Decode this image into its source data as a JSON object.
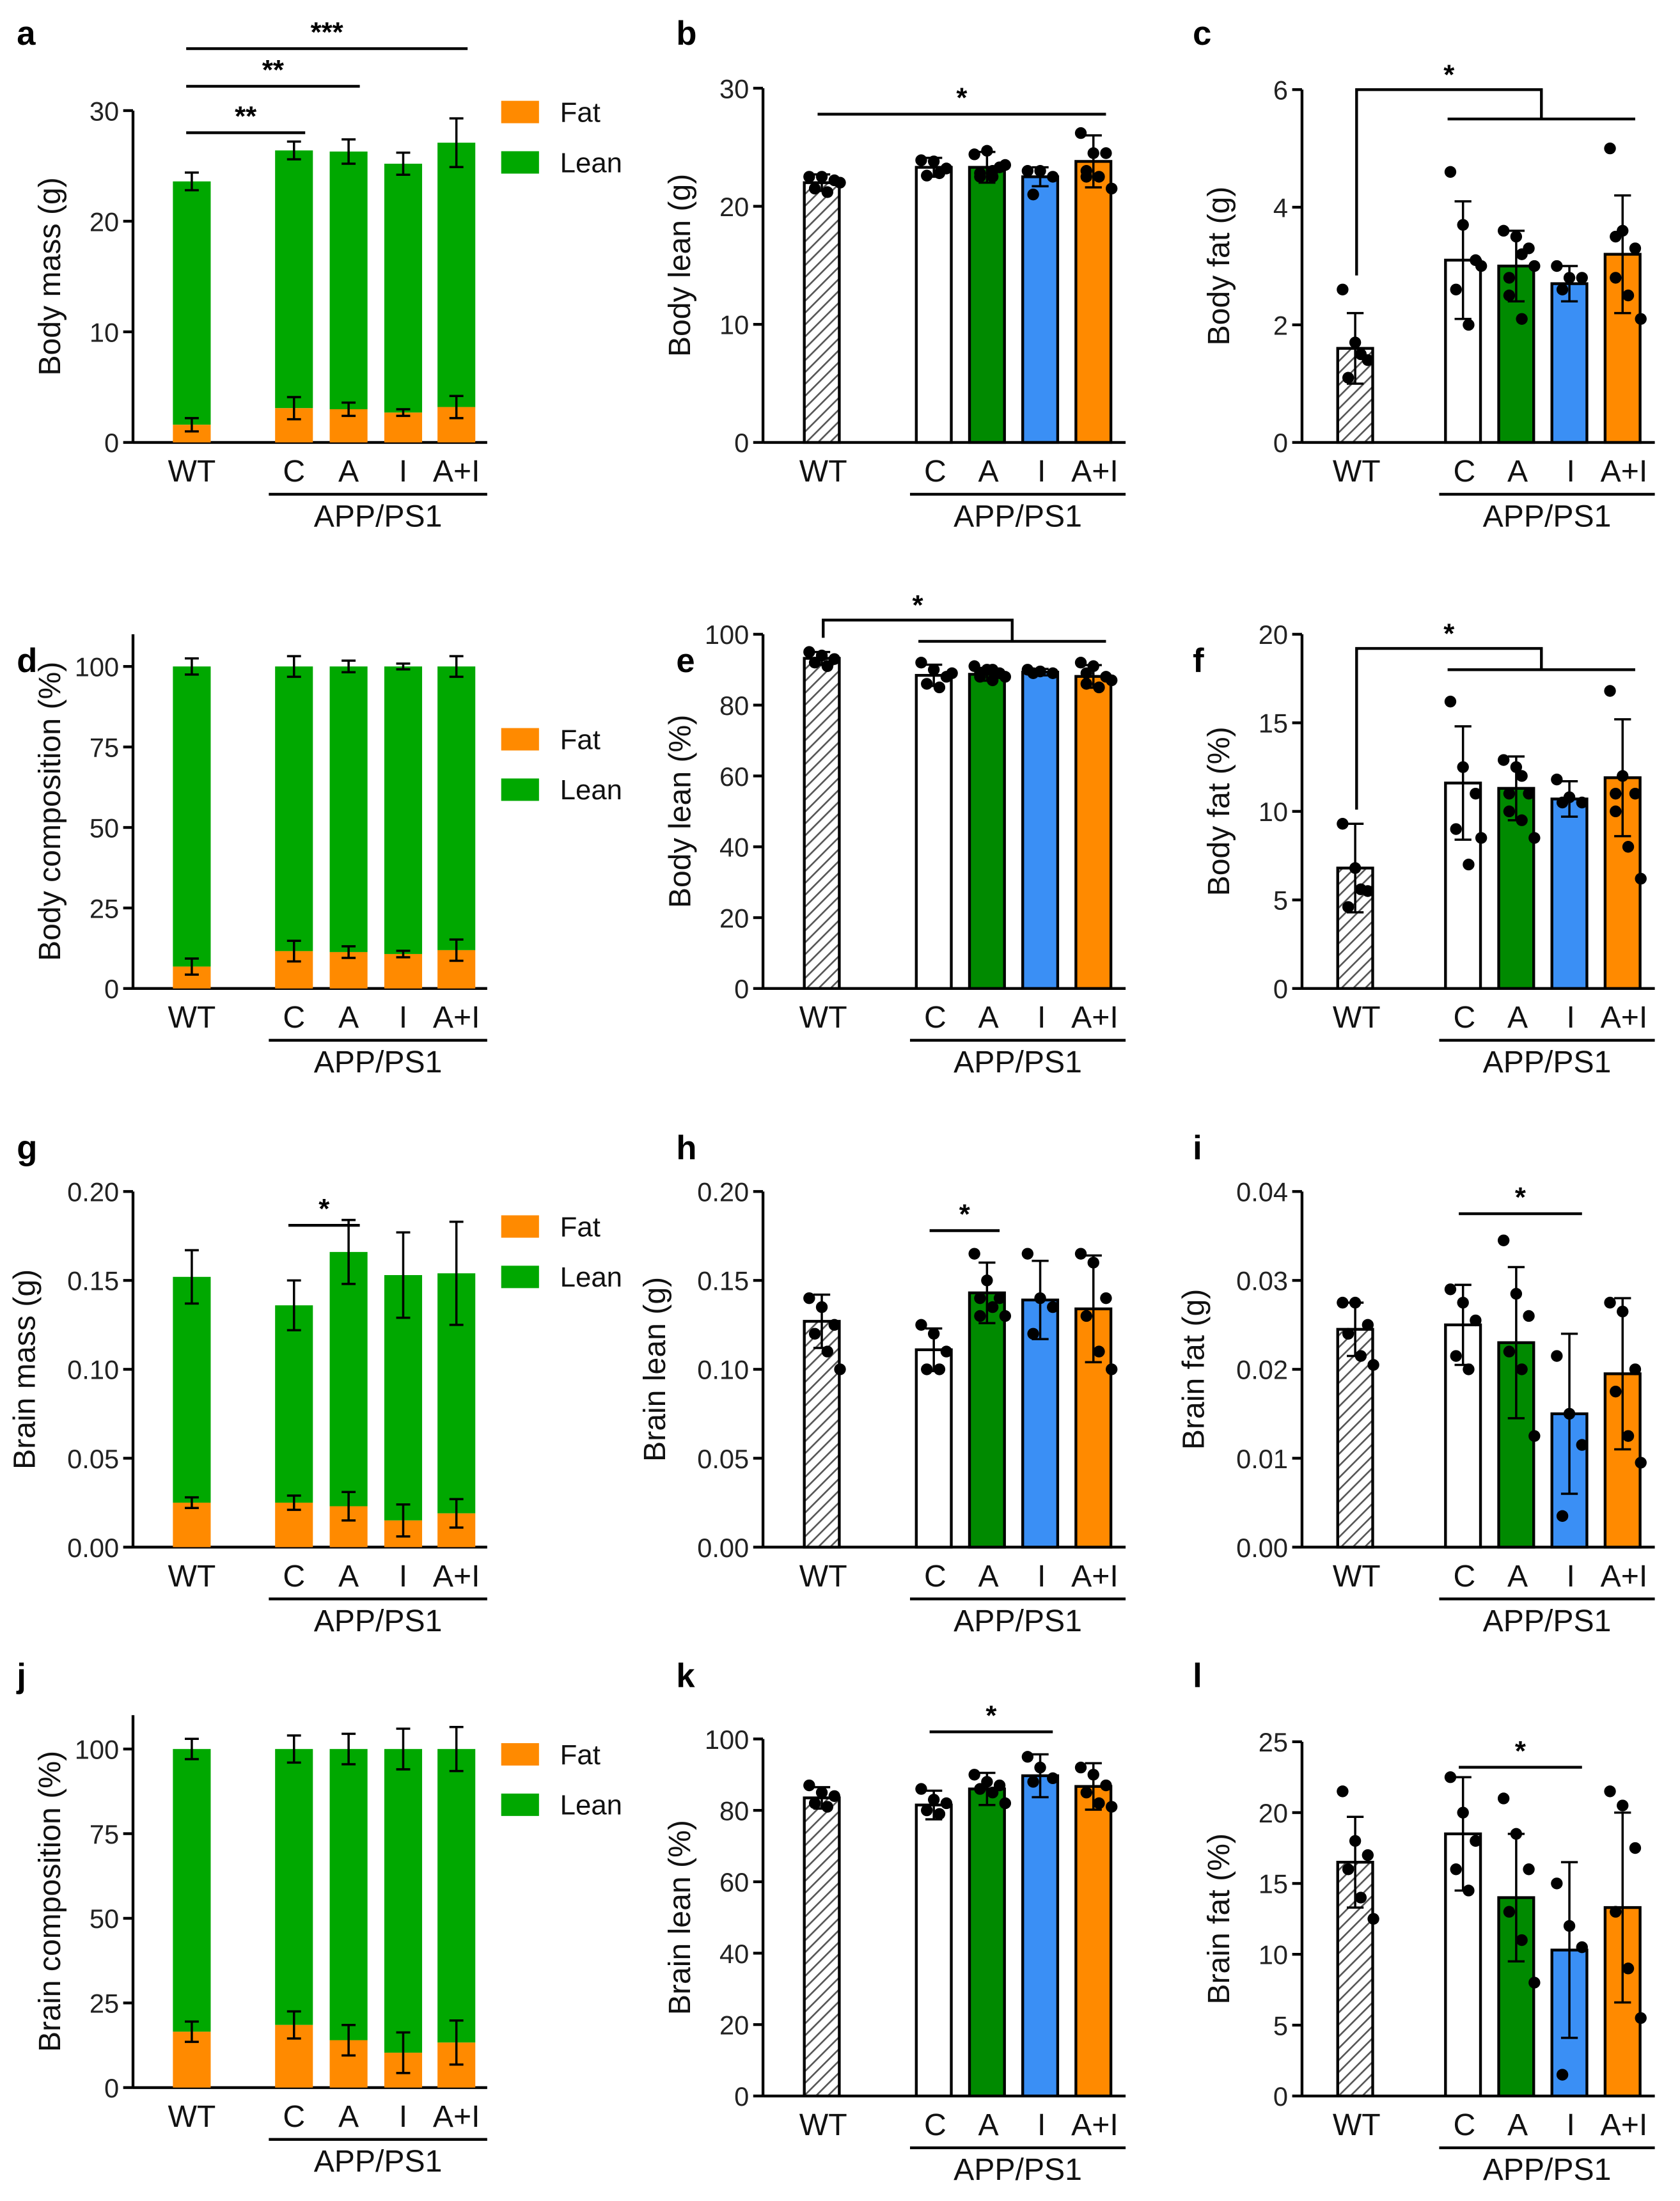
{
  "colors": {
    "WT": "#ffffff",
    "C": "#ffffff",
    "A": "#008a00",
    "I": "#3a8ff5",
    "A+I": "#ff8a00",
    "Fat": "#ff8a00",
    "Lean": "#00a800"
  },
  "chart_data": [
    {
      "panel": "a",
      "type": "bar",
      "stacked": true,
      "ylabel": "Body mass (g)",
      "categories": [
        "WT",
        "C",
        "A",
        "I",
        "A+I"
      ],
      "group_label": "APP/PS1",
      "ylim": [
        0,
        30
      ],
      "yticks": [
        "0",
        "10",
        "20",
        "30"
      ],
      "ytick_values": [
        0,
        10,
        20,
        30
      ],
      "legend": [
        "Fat",
        "Lean"
      ],
      "series": [
        {
          "name": "Fat",
          "values": [
            1.6,
            3.1,
            3.0,
            2.7,
            3.2
          ],
          "errors": [
            0.6,
            1.0,
            0.6,
            0.3,
            1.0
          ]
        },
        {
          "name": "Lean",
          "values": [
            22.0,
            23.3,
            23.3,
            22.5,
            23.9
          ],
          "errors": [
            0.8,
            0.8,
            1.1,
            1.0,
            2.2
          ]
        }
      ],
      "significance": [
        {
          "from": "WT",
          "to": "C",
          "y": 28.0,
          "label": "**"
        },
        {
          "from": "WT",
          "to": "A",
          "y": 32.2,
          "label": "**"
        },
        {
          "from": "WT",
          "to": "A+I",
          "y": 35.6,
          "label": "***"
        }
      ]
    },
    {
      "panel": "b",
      "type": "bar",
      "ylabel": "Body lean (g)",
      "categories": [
        "WT",
        "C",
        "A",
        "I",
        "A+I"
      ],
      "group_label": "APP/PS1",
      "ylim": [
        0,
        30
      ],
      "yticks": [
        "0",
        "10",
        "20",
        "30"
      ],
      "ytick_values": [
        0,
        10,
        20,
        30
      ],
      "values": [
        22.0,
        23.3,
        23.3,
        22.5,
        23.8
      ],
      "errors": [
        0.7,
        0.8,
        1.3,
        0.8,
        2.2
      ],
      "points": [
        [
          22.5,
          22.5,
          22.2,
          21.5,
          21.2,
          22.0
        ],
        [
          23.9,
          23.8,
          23.2,
          22.6,
          22.8
        ],
        [
          24.4,
          24.7,
          23.3,
          22.8,
          22.5,
          23.5,
          22.5,
          23.0
        ],
        [
          23.0,
          23.0,
          22.5,
          21.0
        ],
        [
          26.2,
          24.5,
          24.5,
          22.5,
          22.5,
          21.5,
          23.0
        ]
      ],
      "significance": [
        {
          "from": "WT",
          "to": "A+I",
          "y": 27.8,
          "label": "*"
        }
      ]
    },
    {
      "panel": "c",
      "type": "bar",
      "ylabel": "Body fat (g)",
      "categories": [
        "WT",
        "C",
        "A",
        "I",
        "A+I"
      ],
      "group_label": "APP/PS1",
      "ylim": [
        0,
        6
      ],
      "yticks": [
        "0",
        "2",
        "4",
        "6"
      ],
      "ytick_values": [
        0,
        2,
        4,
        6
      ],
      "values": [
        1.6,
        3.1,
        3.0,
        2.7,
        3.2
      ],
      "errors": [
        0.6,
        1.0,
        0.6,
        0.3,
        1.0
      ],
      "points": [
        [
          2.6,
          1.7,
          1.4,
          1.1,
          1.5
        ],
        [
          4.6,
          3.7,
          3.1,
          2.6,
          2.0,
          3.0
        ],
        [
          3.6,
          3.5,
          3.3,
          2.5,
          2.1,
          3.0,
          2.8,
          3.2
        ],
        [
          3.0,
          2.8,
          2.8,
          2.6
        ],
        [
          5.0,
          3.6,
          3.3,
          2.8,
          2.5,
          2.1,
          3.5
        ]
      ],
      "significance": [
        {
          "type": "group",
          "from": "WT",
          "to_group": [
            "C",
            "A+I"
          ],
          "y": 6.0,
          "y2": 5.5,
          "label": "*"
        }
      ]
    },
    {
      "panel": "d",
      "type": "bar",
      "stacked": true,
      "ylabel": "Body composition (%)",
      "categories": [
        "WT",
        "C",
        "A",
        "I",
        "A+I"
      ],
      "group_label": "APP/PS1",
      "ylim": [
        0,
        110
      ],
      "yticks": [
        "0",
        "25",
        "50",
        "75",
        "100"
      ],
      "ytick_values": [
        0,
        25,
        50,
        75,
        100
      ],
      "legend": [
        "Fat",
        "Lean"
      ],
      "series": [
        {
          "name": "Fat",
          "values": [
            6.8,
            11.6,
            11.3,
            10.7,
            11.9
          ],
          "errors": [
            2.5,
            3.2,
            1.8,
            1.0,
            3.3
          ]
        },
        {
          "name": "Lean",
          "values": [
            93.2,
            88.4,
            88.7,
            89.3,
            88.1
          ],
          "errors": [
            2.5,
            3.2,
            1.8,
            0.9,
            3.2
          ]
        }
      ],
      "significance": []
    },
    {
      "panel": "e",
      "type": "bar",
      "ylabel": "Body lean (%)",
      "categories": [
        "WT",
        "C",
        "A",
        "I",
        "A+I"
      ],
      "group_label": "APP/PS1",
      "ylim": [
        0,
        100
      ],
      "yticks": [
        "0",
        "20",
        "40",
        "60",
        "80",
        "100"
      ],
      "ytick_values": [
        0,
        20,
        40,
        60,
        80,
        100
      ],
      "values": [
        93.2,
        88.4,
        88.7,
        89.3,
        88.1
      ],
      "errors": [
        1.8,
        3.0,
        1.8,
        0.9,
        3.2
      ],
      "points": [
        [
          95,
          94,
          93,
          92,
          91
        ],
        [
          92,
          90,
          88,
          86,
          85,
          89
        ],
        [
          91,
          90,
          89,
          88,
          87,
          88,
          89,
          90
        ],
        [
          90,
          89.5,
          89,
          89
        ],
        [
          92,
          91,
          88,
          86,
          85,
          87,
          89
        ]
      ],
      "significance": [
        {
          "type": "group",
          "from": "WT",
          "to_group": [
            "C",
            "A+I"
          ],
          "y": 104,
          "y2": 98,
          "label": "*"
        }
      ]
    },
    {
      "panel": "f",
      "type": "bar",
      "ylabel": "Body fat (%)",
      "categories": [
        "WT",
        "C",
        "A",
        "I",
        "A+I"
      ],
      "group_label": "APP/PS1",
      "ylim": [
        0,
        20
      ],
      "yticks": [
        "0",
        "5",
        "10",
        "15",
        "20"
      ],
      "ytick_values": [
        0,
        5,
        10,
        15,
        20
      ],
      "values": [
        6.8,
        11.6,
        11.3,
        10.7,
        11.9
      ],
      "errors": [
        2.5,
        3.2,
        1.8,
        1.0,
        3.3
      ],
      "points": [
        [
          9.3,
          6.8,
          5.5,
          4.6,
          5.6
        ],
        [
          16.2,
          12.5,
          11,
          9,
          7,
          8.5
        ],
        [
          12.9,
          12.5,
          11,
          10,
          9.5,
          8.5,
          11,
          12
        ],
        [
          11.8,
          10.8,
          10.5,
          10.5
        ],
        [
          16.8,
          12,
          11,
          10,
          8,
          6.2,
          11
        ]
      ],
      "significance": [
        {
          "type": "group",
          "from": "WT",
          "to_group": [
            "C",
            "A+I"
          ],
          "y": 19.2,
          "y2": 18.0,
          "label": "*"
        }
      ]
    },
    {
      "panel": "g",
      "type": "bar",
      "stacked": true,
      "ylabel": "Brain mass (g)",
      "categories": [
        "WT",
        "C",
        "A",
        "I",
        "A+I"
      ],
      "group_label": "APP/PS1",
      "ylim": [
        0,
        0.2
      ],
      "yticks": [
        "0.00",
        "0.05",
        "0.10",
        "0.15",
        "0.20"
      ],
      "ytick_values": [
        0,
        0.05,
        0.1,
        0.15,
        0.2
      ],
      "legend": [
        "Fat",
        "Lean"
      ],
      "series": [
        {
          "name": "Fat",
          "values": [
            0.025,
            0.025,
            0.023,
            0.015,
            0.019
          ],
          "errors": [
            0.003,
            0.004,
            0.008,
            0.009,
            0.008
          ]
        },
        {
          "name": "Lean",
          "values": [
            0.127,
            0.111,
            0.143,
            0.138,
            0.135
          ],
          "errors": [
            0.015,
            0.014,
            0.018,
            0.024,
            0.029
          ]
        }
      ],
      "significance": [
        {
          "from": "C",
          "to": "A",
          "y": 0.181,
          "label": "*"
        }
      ]
    },
    {
      "panel": "h",
      "type": "bar",
      "ylabel": "Brain lean (g)",
      "categories": [
        "WT",
        "C",
        "A",
        "I",
        "A+I"
      ],
      "group_label": "APP/PS1",
      "ylim": [
        0,
        0.2
      ],
      "yticks": [
        "0.00",
        "0.05",
        "0.10",
        "0.15",
        "0.20"
      ],
      "ytick_values": [
        0,
        0.05,
        0.1,
        0.15,
        0.2
      ],
      "values": [
        0.127,
        0.111,
        0.143,
        0.139,
        0.134
      ],
      "errors": [
        0.015,
        0.012,
        0.017,
        0.022,
        0.03
      ],
      "points": [
        [
          0.14,
          0.135,
          0.125,
          0.12,
          0.11,
          0.1
        ],
        [
          0.125,
          0.12,
          0.11,
          0.1,
          0.1
        ],
        [
          0.165,
          0.15,
          0.14,
          0.14,
          0.135,
          0.13,
          0.13
        ],
        [
          0.165,
          0.14,
          0.135,
          0.12
        ],
        [
          0.165,
          0.16,
          0.14,
          0.13,
          0.11,
          0.1
        ]
      ],
      "significance": [
        {
          "from": "C",
          "to": "A",
          "y": 0.178,
          "label": "*"
        }
      ]
    },
    {
      "panel": "i",
      "type": "bar",
      "ylabel": "Brain fat (g)",
      "categories": [
        "WT",
        "C",
        "A",
        "I",
        "A+I"
      ],
      "group_label": "APP/PS1",
      "ylim": [
        0,
        0.04
      ],
      "yticks": [
        "0.00",
        "0.01",
        "0.02",
        "0.03",
        "0.04"
      ],
      "ytick_values": [
        0,
        0.01,
        0.02,
        0.03,
        0.04
      ],
      "values": [
        0.0245,
        0.025,
        0.023,
        0.015,
        0.0195
      ],
      "errors": [
        0.003,
        0.0045,
        0.0085,
        0.009,
        0.0085
      ],
      "points": [
        [
          0.0275,
          0.0275,
          0.025,
          0.024,
          0.0215,
          0.0205
        ],
        [
          0.029,
          0.0275,
          0.0255,
          0.0215,
          0.02
        ],
        [
          0.0345,
          0.0285,
          0.026,
          0.022,
          0.02,
          0.0125
        ],
        [
          0.0215,
          0.015,
          0.0115,
          0.0035
        ],
        [
          0.0275,
          0.0265,
          0.02,
          0.0175,
          0.0125,
          0.0095
        ]
      ],
      "significance": [
        {
          "from": "C",
          "to": "I",
          "y": 0.0375,
          "label": "*"
        }
      ]
    },
    {
      "panel": "j",
      "type": "bar",
      "stacked": true,
      "ylabel": "Brain composition (%)",
      "categories": [
        "WT",
        "C",
        "A",
        "I",
        "A+I"
      ],
      "group_label": "APP/PS1",
      "ylim": [
        0,
        110
      ],
      "yticks": [
        "0",
        "25",
        "50",
        "75",
        "100"
      ],
      "ytick_values": [
        0,
        25,
        50,
        75,
        100
      ],
      "legend": [
        "Fat",
        "Lean"
      ],
      "series": [
        {
          "name": "Fat",
          "values": [
            16.5,
            18.5,
            14.0,
            10.3,
            13.3
          ],
          "errors": [
            3.0,
            4.0,
            4.5,
            6.0,
            6.5
          ]
        },
        {
          "name": "Lean",
          "values": [
            83.5,
            81.5,
            86.0,
            89.7,
            86.7
          ],
          "errors": [
            3.0,
            4.0,
            4.5,
            6.0,
            6.5
          ]
        }
      ],
      "significance": []
    },
    {
      "panel": "k",
      "type": "bar",
      "ylabel": "Brain lean (%)",
      "categories": [
        "WT",
        "C",
        "A",
        "I",
        "A+I"
      ],
      "group_label": "APP/PS1",
      "ylim": [
        0,
        100
      ],
      "yticks": [
        "0",
        "20",
        "40",
        "60",
        "80",
        "100"
      ],
      "ytick_values": [
        0,
        20,
        40,
        60,
        80,
        100
      ],
      "values": [
        83.5,
        81.5,
        86.0,
        89.7,
        86.7
      ],
      "errors": [
        3.0,
        4.0,
        4.5,
        6.0,
        6.5
      ],
      "points": [
        [
          87,
          85,
          84,
          82,
          81
        ],
        [
          86,
          83,
          82,
          80,
          79
        ],
        [
          90,
          88,
          87,
          86,
          85,
          82
        ],
        [
          95,
          92,
          89,
          88
        ],
        [
          92,
          90,
          87,
          85,
          82,
          81
        ]
      ],
      "significance": [
        {
          "from": "C",
          "to": "I",
          "y": 102,
          "label": "*"
        }
      ]
    },
    {
      "panel": "l",
      "type": "bar",
      "ylabel": "Brain fat (%)",
      "categories": [
        "WT",
        "C",
        "A",
        "I",
        "A+I"
      ],
      "group_label": "APP/PS1",
      "ylim": [
        0,
        25
      ],
      "yticks": [
        "0",
        "5",
        "10",
        "15",
        "20",
        "25"
      ],
      "ytick_values": [
        0,
        5,
        10,
        15,
        20,
        25
      ],
      "values": [
        16.5,
        18.5,
        14.0,
        10.3,
        13.3
      ],
      "errors": [
        3.2,
        4.0,
        4.5,
        6.2,
        6.7
      ],
      "points": [
        [
          21.5,
          18,
          17,
          16,
          14,
          12.5
        ],
        [
          22.5,
          20,
          18,
          16,
          14.5
        ],
        [
          21,
          18.5,
          16,
          13,
          11,
          8
        ],
        [
          15,
          12,
          10.5,
          1.5
        ],
        [
          21.5,
          20.5,
          17.5,
          13,
          9,
          5.5
        ]
      ],
      "significance": [
        {
          "from": "C",
          "to": "I",
          "y": 23.2,
          "label": "*"
        }
      ]
    }
  ]
}
